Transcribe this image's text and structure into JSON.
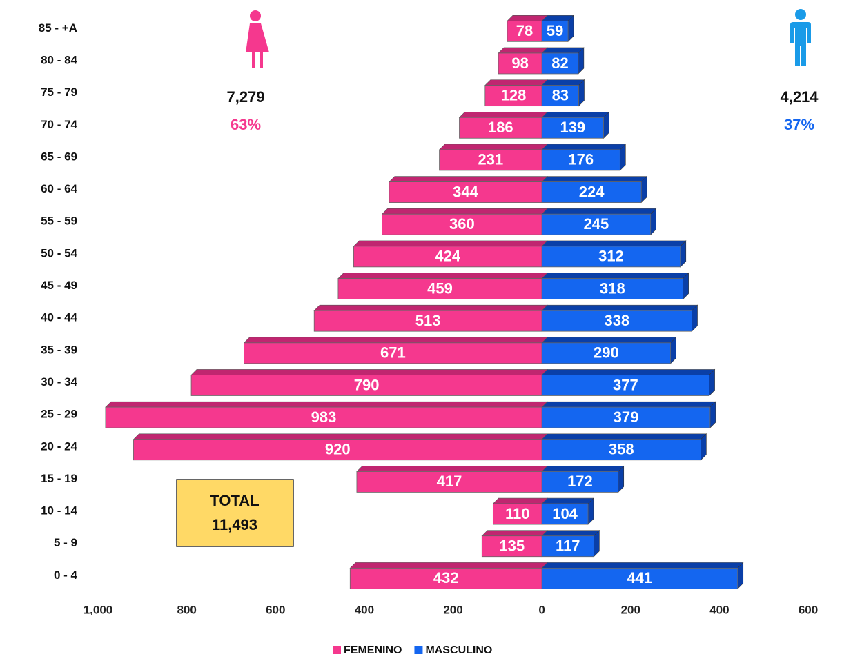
{
  "chart_data": {
    "type": "pyramid",
    "categories": [
      "85 - +A",
      "80 - 84",
      "75 - 79",
      "70 - 74",
      "65 - 69",
      "60 - 64",
      "55 - 59",
      "50 - 54",
      "45 - 49",
      "40 - 44",
      "35 - 39",
      "30 - 34",
      "25 - 29",
      "20 - 24",
      "15 - 19",
      "10 - 14",
      "5 - 9",
      "0 - 4"
    ],
    "series": [
      {
        "name": "FEMENINO",
        "color": "#f5388e",
        "values": [
          78,
          98,
          128,
          186,
          231,
          344,
          360,
          424,
          459,
          513,
          671,
          790,
          983,
          920,
          417,
          110,
          135,
          432
        ]
      },
      {
        "name": "MASCULINO",
        "color": "#1466f0",
        "values": [
          59,
          82,
          83,
          139,
          176,
          224,
          245,
          312,
          318,
          338,
          290,
          377,
          379,
          358,
          172,
          104,
          117,
          441
        ]
      }
    ],
    "xlim": [
      -1000,
      600
    ],
    "xticks": [
      {
        "value": -1000,
        "label": "1,000"
      },
      {
        "value": -800,
        "label": "800"
      },
      {
        "value": -600,
        "label": "600"
      },
      {
        "value": -400,
        "label": "400"
      },
      {
        "value": -200,
        "label": "200"
      },
      0,
      200,
      400,
      600
    ],
    "annotations": {
      "female_total": "7,279",
      "female_share": "63%",
      "male_total": "4,214",
      "male_share": "37%",
      "total_title": "TOTAL",
      "total_value": "11,493"
    }
  }
}
